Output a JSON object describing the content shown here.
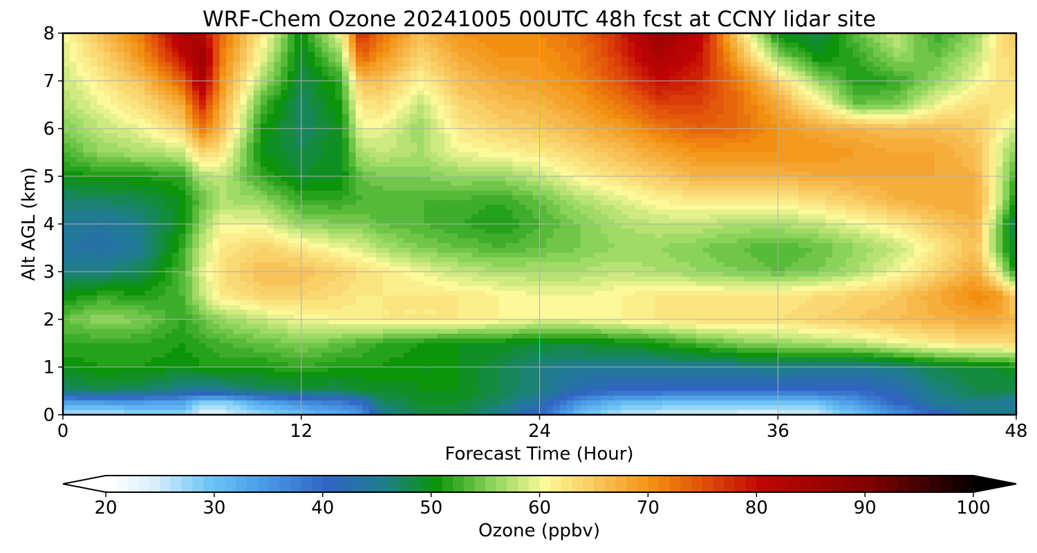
{
  "chart_data": {
    "type": "heatmap",
    "title": "WRF-Chem Ozone  20241005 00UTC 48h fcst at CCNY lidar site",
    "xlabel": "Forecast Time (Hour)",
    "ylabel": "Alt AGL (km)",
    "xlim": [
      0,
      48
    ],
    "ylim": [
      0,
      8
    ],
    "x_ticks": [
      "0",
      "12",
      "24",
      "36",
      "48"
    ],
    "y_ticks": [
      "0",
      "1",
      "2",
      "3",
      "4",
      "5",
      "6",
      "7",
      "8"
    ],
    "grid": true,
    "x": [
      0,
      2,
      4,
      6,
      7,
      8,
      10,
      12,
      14,
      15,
      16,
      18,
      20,
      22,
      24,
      26,
      28,
      30,
      32,
      34,
      36,
      38,
      40,
      42,
      44,
      46,
      47,
      48
    ],
    "y": [
      0,
      0.25,
      0.5,
      1,
      1.5,
      2,
      2.5,
      3,
      3.5,
      4,
      4.5,
      5,
      5.5,
      6,
      6.5,
      7,
      7.5,
      8
    ],
    "z": [
      [
        26,
        26,
        27,
        28,
        24,
        24,
        27,
        30,
        32,
        34,
        45,
        48,
        48,
        45,
        40,
        30,
        26,
        25,
        25,
        24,
        24,
        25,
        30,
        35,
        40,
        45,
        46,
        46
      ],
      [
        33,
        34,
        34,
        33,
        28,
        28,
        33,
        36,
        38,
        40,
        47,
        49,
        49,
        47,
        43,
        35,
        31,
        30,
        29,
        29,
        29,
        30,
        35,
        40,
        45,
        46,
        45,
        44
      ],
      [
        47,
        48,
        47,
        45,
        44,
        45,
        47,
        48,
        48,
        49,
        49,
        50,
        50,
        48,
        46,
        42,
        40,
        40,
        40,
        40,
        40,
        40,
        40,
        42,
        46,
        48,
        48,
        48
      ],
      [
        50,
        51,
        51,
        50,
        51,
        51,
        51,
        52,
        51,
        51,
        51,
        50,
        50,
        48,
        46,
        45,
        45,
        45,
        45,
        45,
        46,
        45,
        45,
        46,
        48,
        49,
        49,
        50
      ],
      [
        52,
        52,
        52,
        51,
        52,
        53,
        54,
        55,
        54,
        53,
        52,
        51,
        50,
        50,
        49,
        49,
        50,
        51,
        53,
        55,
        56,
        57,
        58,
        60,
        62,
        63,
        63,
        64
      ],
      [
        54,
        56,
        55,
        52,
        54,
        56,
        58,
        60,
        61,
        61,
        62,
        62,
        62,
        61,
        60,
        60,
        61,
        62,
        63,
        63,
        63,
        64,
        65,
        66,
        67,
        68,
        68,
        66
      ],
      [
        50,
        52,
        51,
        53,
        58,
        62,
        64,
        64,
        63,
        62,
        62,
        62,
        62,
        61,
        60,
        60,
        61,
        62,
        62,
        62,
        62,
        63,
        64,
        65,
        68,
        71,
        70,
        64
      ],
      [
        46,
        46,
        48,
        53,
        59,
        63,
        66,
        66,
        64,
        63,
        62,
        60,
        58,
        57,
        57,
        57,
        58,
        57,
        56,
        55,
        54,
        55,
        57,
        60,
        64,
        68,
        60,
        50
      ],
      [
        44,
        43,
        45,
        52,
        58,
        62,
        64,
        62,
        60,
        59,
        57,
        55,
        54,
        53,
        54,
        55,
        56,
        56,
        55,
        54,
        53,
        54,
        56,
        58,
        62,
        66,
        55,
        48
      ],
      [
        45,
        44,
        46,
        50,
        56,
        60,
        60,
        56,
        55,
        55,
        54,
        53,
        52,
        51,
        53,
        55,
        57,
        58,
        58,
        57,
        57,
        58,
        60,
        62,
        65,
        67,
        56,
        47
      ],
      [
        47,
        47,
        48,
        50,
        54,
        57,
        56,
        52,
        52,
        53,
        53,
        53,
        53,
        52,
        54,
        57,
        59,
        61,
        62,
        62,
        62,
        63,
        65,
        67,
        68,
        68,
        60,
        50
      ],
      [
        50,
        51,
        51,
        52,
        57,
        58,
        52,
        49,
        50,
        54,
        55,
        55,
        56,
        56,
        58,
        61,
        63,
        65,
        67,
        67,
        67,
        68,
        68,
        68,
        68,
        67,
        60,
        52
      ],
      [
        53,
        56,
        57,
        58,
        64,
        62,
        50,
        48,
        50,
        57,
        58,
        57,
        60,
        61,
        62,
        64,
        66,
        68,
        70,
        70,
        70,
        70,
        69,
        68,
        68,
        66,
        60,
        55
      ],
      [
        55,
        58,
        60,
        64,
        72,
        66,
        51,
        47,
        50,
        60,
        60,
        56,
        62,
        64,
        65,
        67,
        69,
        72,
        74,
        73,
        70,
        68,
        67,
        66,
        66,
        65,
        62,
        58
      ],
      [
        57,
        60,
        63,
        68,
        78,
        68,
        53,
        47,
        51,
        62,
        63,
        58,
        64,
        66,
        67,
        69,
        72,
        76,
        76,
        73,
        68,
        62,
        54,
        55,
        60,
        63,
        63,
        62
      ],
      [
        58,
        62,
        66,
        74,
        84,
        70,
        57,
        48,
        52,
        66,
        66,
        61,
        66,
        68,
        69,
        71,
        75,
        80,
        78,
        72,
        64,
        56,
        51,
        52,
        56,
        60,
        62,
        63
      ],
      [
        59,
        64,
        70,
        80,
        86,
        72,
        60,
        49,
        56,
        74,
        70,
        64,
        68,
        70,
        70,
        72,
        77,
        84,
        80,
        68,
        56,
        50,
        52,
        56,
        54,
        58,
        62,
        64
      ],
      [
        60,
        66,
        72,
        84,
        82,
        73,
        62,
        50,
        60,
        78,
        73,
        66,
        70,
        71,
        71,
        73,
        78,
        86,
        82,
        64,
        50,
        48,
        54,
        58,
        52,
        56,
        62,
        65
      ]
    ],
    "colorbar": {
      "label": "Ozone  (ppbv)",
      "ticks": [
        "20",
        "30",
        "40",
        "50",
        "60",
        "70",
        "80",
        "90",
        "100"
      ],
      "min": 20,
      "max": 100,
      "step": 1,
      "extend": "both"
    },
    "colormap_stops": [
      {
        "value": 20,
        "color": "#ffffff"
      },
      {
        "value": 24,
        "color": "#d8eefb"
      },
      {
        "value": 29,
        "color": "#6ec5f5"
      },
      {
        "value": 34,
        "color": "#4a9be6"
      },
      {
        "value": 40,
        "color": "#3064c2"
      },
      {
        "value": 45,
        "color": "#1f7d8e"
      },
      {
        "value": 50,
        "color": "#0c940b"
      },
      {
        "value": 55,
        "color": "#8ad35a"
      },
      {
        "value": 60,
        "color": "#fcf99a"
      },
      {
        "value": 65,
        "color": "#f8c45a"
      },
      {
        "value": 70,
        "color": "#f28f10"
      },
      {
        "value": 75,
        "color": "#e04a0a"
      },
      {
        "value": 80,
        "color": "#c10404"
      },
      {
        "value": 90,
        "color": "#7e0202"
      },
      {
        "value": 100,
        "color": "#000000"
      }
    ],
    "colors": {
      "grid": "#b0b0b0",
      "axis": "#000000",
      "background": "#ffffff"
    }
  }
}
